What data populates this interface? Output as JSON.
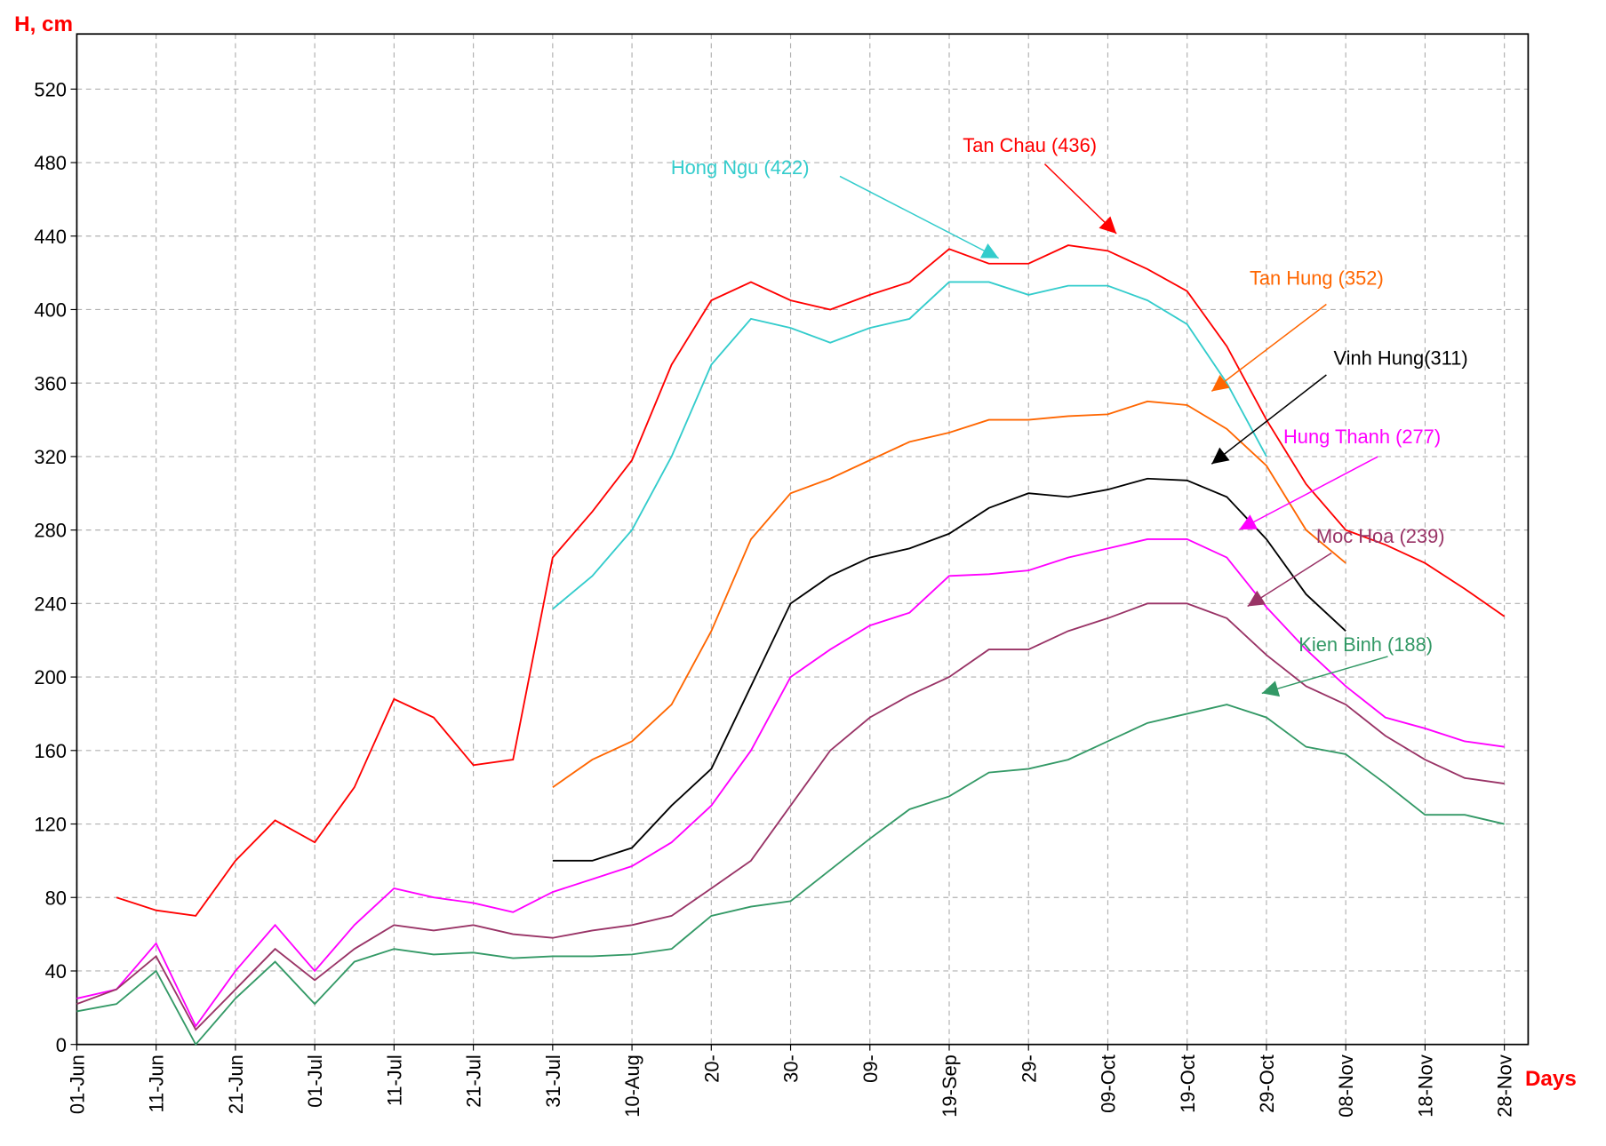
{
  "chart_data": {
    "type": "line",
    "y_label": "H, cm",
    "x_label": "Days",
    "x": [
      0,
      5,
      10,
      15,
      20,
      25,
      30,
      35,
      40,
      45,
      50,
      55,
      60,
      65,
      70,
      75,
      80,
      85,
      90,
      95,
      100,
      105,
      110,
      115,
      120,
      125,
      130,
      135,
      140,
      145,
      150,
      155,
      160,
      165,
      170,
      175,
      180
    ],
    "xlim": [
      0,
      183
    ],
    "xticks": [
      {
        "value": 0,
        "label": "01-Jun"
      },
      {
        "value": 10,
        "label": "11-Jun"
      },
      {
        "value": 20,
        "label": "21-Jun"
      },
      {
        "value": 30,
        "label": "01-Jul"
      },
      {
        "value": 40,
        "label": "11-Jul"
      },
      {
        "value": 50,
        "label": "21-Jul"
      },
      {
        "value": 60,
        "label": "31-Jul"
      },
      {
        "value": 70,
        "label": "10-Aug"
      },
      {
        "value": 80,
        "label": "20-"
      },
      {
        "value": 90,
        "label": "30-"
      },
      {
        "value": 100,
        "label": "09-"
      },
      {
        "value": 110,
        "label": "19-Sep"
      },
      {
        "value": 120,
        "label": "29-"
      },
      {
        "value": 130,
        "label": "09-Oct"
      },
      {
        "value": 140,
        "label": "19-Oct"
      },
      {
        "value": 150,
        "label": "29-Oct"
      },
      {
        "value": 160,
        "label": "08-Nov"
      },
      {
        "value": 170,
        "label": "18-Nov"
      },
      {
        "value": 180,
        "label": "28-Nov"
      }
    ],
    "ylim": [
      0,
      550
    ],
    "yticks": [
      0,
      40,
      80,
      120,
      160,
      200,
      240,
      280,
      320,
      360,
      400,
      440,
      480,
      520
    ],
    "grid": true,
    "series": [
      {
        "name": "Tan Chau (436)",
        "color": "#ff0000",
        "values": [
          null,
          80,
          73,
          70,
          100,
          122,
          110,
          140,
          188,
          178,
          152,
          155,
          265,
          290,
          318,
          370,
          405,
          415,
          405,
          400,
          408,
          415,
          433,
          425,
          425,
          435,
          432,
          422,
          410,
          380,
          340,
          305,
          280,
          272,
          262,
          248,
          233
        ]
      },
      {
        "name": "Hong Ngu (422)",
        "color": "#33cccc",
        "values": [
          null,
          null,
          null,
          null,
          null,
          null,
          null,
          null,
          null,
          null,
          null,
          null,
          237,
          255,
          280,
          320,
          370,
          395,
          390,
          382,
          390,
          395,
          415,
          415,
          408,
          413,
          413,
          405,
          392,
          360,
          320,
          null,
          null,
          null,
          null,
          null,
          null
        ]
      },
      {
        "name": "Tan Hung (352)",
        "color": "#ff6600",
        "values": [
          null,
          null,
          null,
          null,
          null,
          null,
          null,
          null,
          null,
          null,
          null,
          null,
          140,
          155,
          165,
          185,
          225,
          275,
          300,
          308,
          318,
          328,
          333,
          340,
          340,
          342,
          343,
          350,
          348,
          335,
          315,
          280,
          262,
          null,
          null,
          null,
          null
        ]
      },
      {
        "name": "Vinh Hung(311)",
        "color": "#000000",
        "values": [
          null,
          null,
          null,
          null,
          null,
          null,
          null,
          null,
          null,
          null,
          null,
          null,
          100,
          100,
          107,
          130,
          150,
          195,
          240,
          255,
          265,
          270,
          278,
          292,
          300,
          298,
          302,
          308,
          307,
          298,
          275,
          245,
          225,
          null,
          null,
          null,
          null
        ]
      },
      {
        "name": "Hung Thanh (277)",
        "color": "#ff00ff",
        "values": [
          25,
          30,
          55,
          10,
          40,
          65,
          40,
          65,
          85,
          80,
          77,
          72,
          83,
          90,
          97,
          110,
          130,
          160,
          200,
          215,
          228,
          235,
          255,
          256,
          258,
          265,
          270,
          275,
          275,
          265,
          238,
          215,
          195,
          178,
          172,
          165,
          162
        ]
      },
      {
        "name": "Moc Hoa (239)",
        "color": "#993366",
        "values": [
          22,
          30,
          48,
          8,
          30,
          52,
          35,
          52,
          65,
          62,
          65,
          60,
          58,
          62,
          65,
          70,
          85,
          100,
          130,
          160,
          178,
          190,
          200,
          215,
          215,
          225,
          232,
          240,
          240,
          232,
          212,
          195,
          185,
          168,
          155,
          145,
          142
        ]
      },
      {
        "name": "Kien Binh (188)",
        "color": "#339966",
        "values": [
          18,
          22,
          40,
          0,
          25,
          45,
          22,
          45,
          52,
          49,
          50,
          47,
          48,
          48,
          49,
          52,
          70,
          75,
          78,
          95,
          112,
          128,
          135,
          148,
          150,
          155,
          165,
          175,
          180,
          185,
          178,
          162,
          158,
          142,
          125,
          125,
          120
        ]
      }
    ]
  }
}
